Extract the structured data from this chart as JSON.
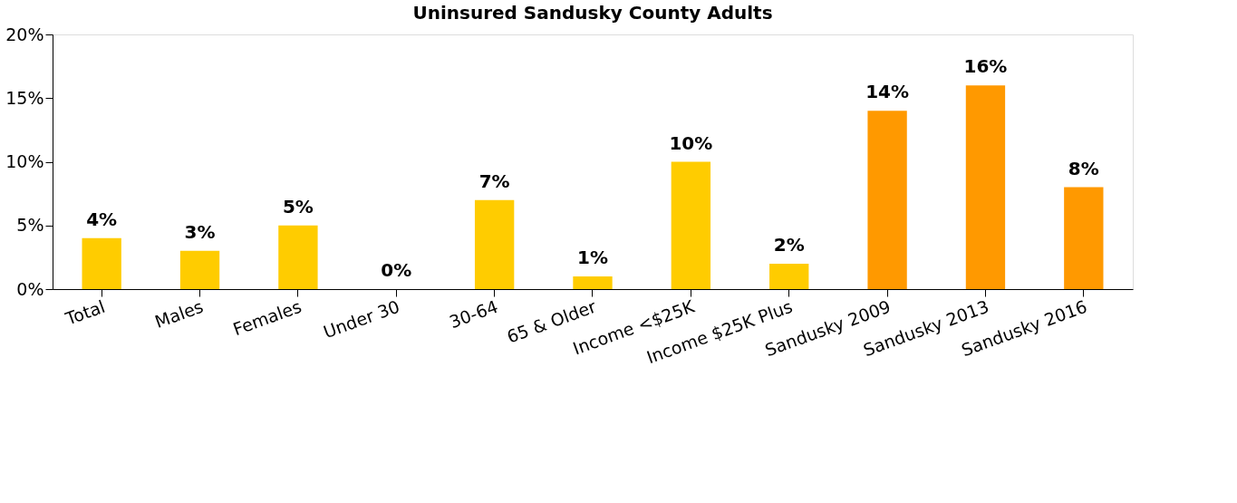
{
  "chart_data": {
    "type": "bar",
    "title": "Uninsured Sandusky County Adults",
    "categories": [
      "Total",
      "Males",
      "Females",
      "Under 30",
      "30-64",
      "65 & Older",
      "Income <$25K",
      "Income $25K Plus",
      "Sandusky 2009",
      "Sandusky 2013",
      "Sandusky 2016"
    ],
    "values": [
      4,
      3,
      5,
      0,
      7,
      1,
      10,
      2,
      14,
      16,
      8
    ],
    "colors": [
      "#ffcc00",
      "#ffcc00",
      "#ffcc00",
      "#ffcc00",
      "#ffcc00",
      "#ffcc00",
      "#ffcc00",
      "#ffcc00",
      "#ff9900",
      "#ff9900",
      "#ff9900"
    ],
    "value_labels": [
      "4%",
      "3%",
      "5%",
      "0%",
      "7%",
      "1%",
      "10%",
      "2%",
      "14%",
      "16%",
      "8%"
    ],
    "ylim": [
      0,
      20
    ],
    "yticks": [
      {
        "value": 0,
        "label": "0%"
      },
      {
        "value": 5,
        "label": "5%"
      },
      {
        "value": 10,
        "label": "10%"
      },
      {
        "value": 15,
        "label": "15%"
      },
      {
        "value": 20,
        "label": "20%"
      }
    ],
    "grid": false
  }
}
